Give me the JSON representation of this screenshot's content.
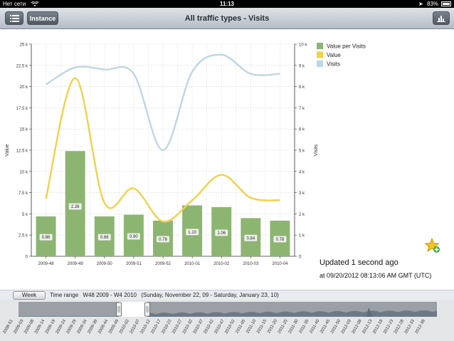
{
  "status_bar": {
    "carrier": "Нет сети",
    "time": "11:13",
    "battery": "83%"
  },
  "nav": {
    "title": "All traffic types - Visits",
    "instance_label": "Instance",
    "icons": {
      "menu": "list-icon",
      "chart": "bar-chart-icon"
    }
  },
  "chart_data": {
    "type": "bar",
    "categories": [
      "2009-48",
      "2009-49",
      "2009-50",
      "2009-51",
      "2009-52",
      "2010-01",
      "2010-02",
      "2010-03",
      "2010-04"
    ],
    "series": [
      {
        "name": "Value per Visits",
        "type": "bar",
        "axis": "left",
        "values": [
          4700,
          12400,
          4700,
          4900,
          4200,
          6000,
          5800,
          4500,
          4200
        ],
        "labels": [
          "0.86",
          "2.26",
          "0.86",
          "0.90",
          "0.78",
          "1.10",
          "1.06",
          "0.84",
          "0.78"
        ]
      },
      {
        "name": "Value",
        "type": "line",
        "axis": "left",
        "values": [
          6800,
          21000,
          6300,
          8000,
          4100,
          6600,
          9600,
          6900,
          6600
        ]
      },
      {
        "name": "Visits",
        "type": "line",
        "axis": "right",
        "values": [
          8100,
          8900,
          8800,
          8600,
          5000,
          8700,
          9500,
          8600,
          8600
        ]
      }
    ],
    "ylabel": "Value",
    "y2label": "Visits",
    "ylim": [
      0,
      25000
    ],
    "y2lim": [
      0,
      10000
    ],
    "yticks": [
      "0",
      "2.5 k",
      "5 k",
      "7.5 k",
      "10 k",
      "12.5 k",
      "15 k",
      "17.5 k",
      "20 k",
      "22.5 k",
      "25 k"
    ],
    "y2ticks": [
      "0",
      "1 k",
      "2 k",
      "3 k",
      "4 k",
      "5 k",
      "6 k",
      "7 k",
      "8 k",
      "9 k",
      "10 k"
    ],
    "grid": true,
    "legend": "top-right",
    "colors": {
      "bar": "#8db572",
      "value": "#f2d14b",
      "visits": "#bfd6e3"
    }
  },
  "info": {
    "updated": "Updated 1 second ago",
    "updated_at": "at 09/20/2012 08:13:06 AM GMT (UTC)"
  },
  "range": {
    "week_label": "Week",
    "time_range_label": "Time range",
    "weeks": "W48 2009 - W4 2010",
    "dates": "(Sunday, November 22, 09 - Saturday, January 23, 10)"
  },
  "navigator": {
    "ticks": [
      "2008-51",
      "2009-03",
      "2009-08",
      "2009-14",
      "2009-19",
      "2009-24",
      "2009-29",
      "2009-34",
      "2009-39",
      "2009-44",
      "2009-49",
      "2010-02",
      "2010-07",
      "2010-12",
      "2010-17",
      "2010-22",
      "2010-27",
      "2010-32",
      "2010-37",
      "2010-42",
      "2010-47",
      "2010-52",
      "2011-05",
      "2011-10",
      "2011-15",
      "2011-20",
      "2011-25",
      "2011-30",
      "2011-35",
      "2011-40",
      "2011-45",
      "2011-50",
      "2012-03",
      "2012-08",
      "2012-13",
      "2012-18",
      "2012-23",
      "2012-28",
      "2012-33",
      "2012-38"
    ]
  }
}
